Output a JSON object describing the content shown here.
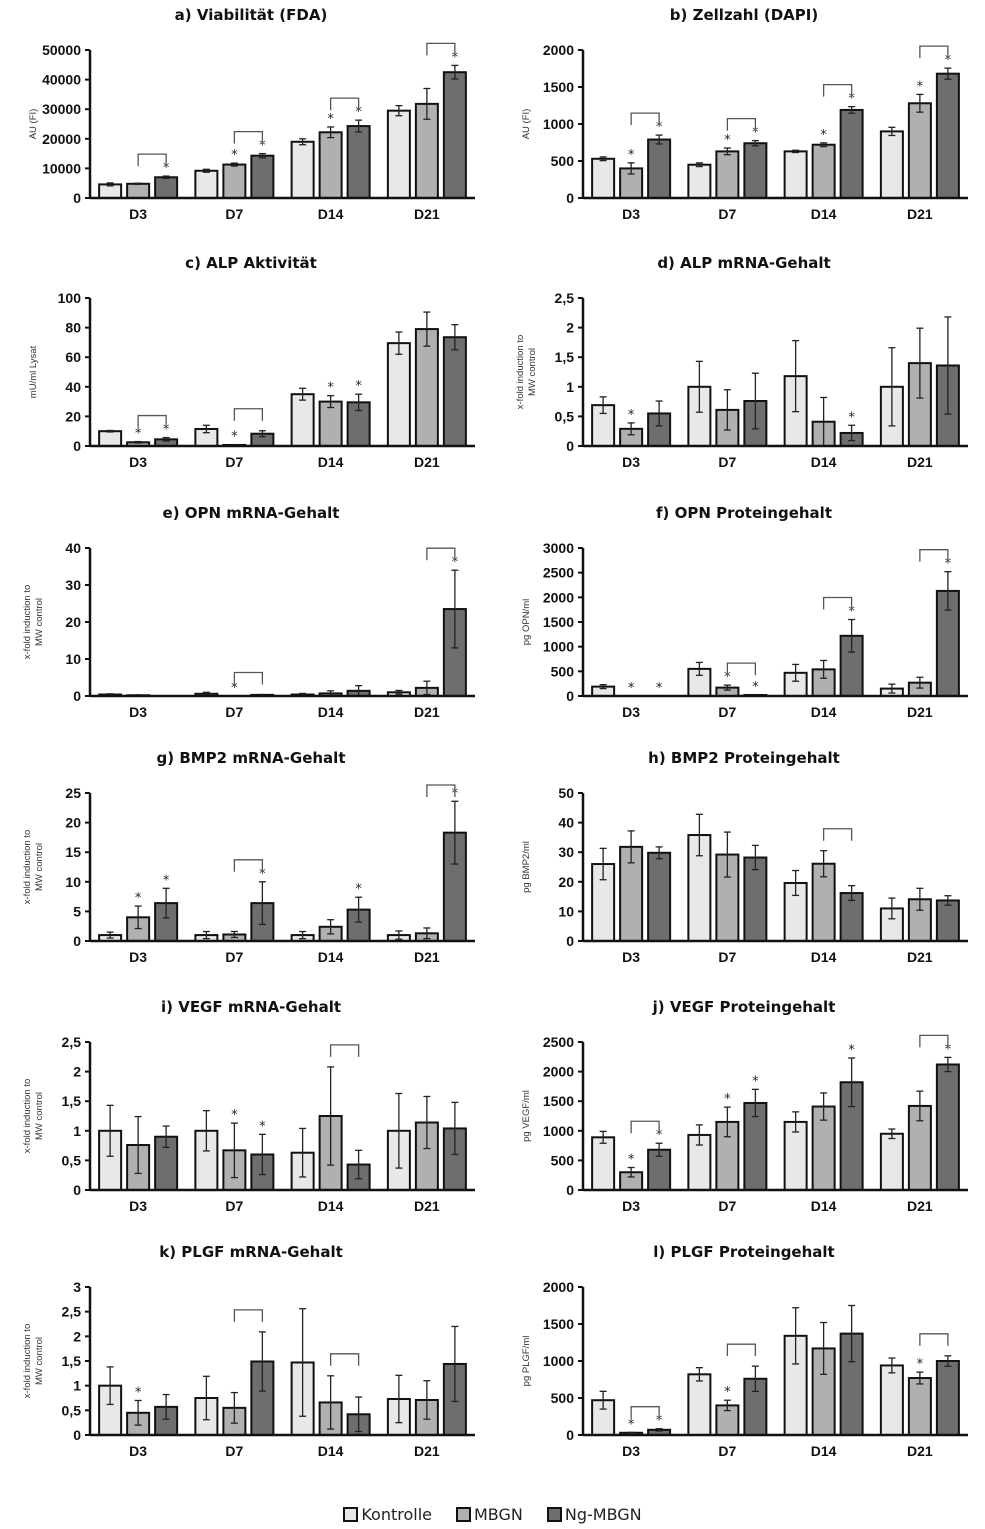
{
  "legend": [
    {
      "name": "Kontrolle",
      "color": "#e8e8e8"
    },
    {
      "name": "MBGN",
      "color": "#b0b0b0"
    },
    {
      "name": "Ng-MBGN",
      "color": "#6e6e6e"
    }
  ],
  "chart_data": [
    {
      "id": "a",
      "type": "bar",
      "title": "a) Viabilität (FDA)",
      "ylabel": "AU (FI)",
      "categories": [
        "D3",
        "D7",
        "D14",
        "D21"
      ],
      "ylim": [
        0,
        50000
      ],
      "yticks": [
        "0",
        "10000",
        "20000",
        "30000",
        "40000",
        "50000"
      ],
      "ytick_values": [
        0,
        10000,
        20000,
        30000,
        40000,
        50000
      ],
      "series": [
        {
          "name": "Kontrolle",
          "values": [
            4600,
            9200,
            19000,
            29500
          ],
          "errors": [
            500,
            500,
            1000,
            1700
          ]
        },
        {
          "name": "MBGN",
          "values": [
            4800,
            11300,
            22200,
            31800
          ],
          "errors": [
            200,
            500,
            1800,
            5200
          ]
        },
        {
          "name": "Ng-MBGN",
          "values": [
            7000,
            14300,
            24300,
            42500
          ],
          "errors": [
            400,
            700,
            2000,
            2300
          ]
        }
      ],
      "stars": [
        [
          0,
          2
        ],
        [
          1,
          1
        ],
        [
          1,
          2
        ],
        [
          2,
          1
        ],
        [
          2,
          2
        ],
        [
          3,
          2
        ]
      ],
      "brackets": [
        [
          0,
          1,
          2
        ],
        [
          1,
          1,
          2
        ],
        [
          2,
          1,
          2
        ],
        [
          3,
          1,
          2
        ]
      ]
    },
    {
      "id": "b",
      "type": "bar",
      "title": "b) Zellzahl (DAPI)",
      "ylabel": "AU (FI)",
      "categories": [
        "D3",
        "D7",
        "D14",
        "D21"
      ],
      "ylim": [
        0,
        2000
      ],
      "yticks": [
        "0",
        "500",
        "1000",
        "1500",
        "2000"
      ],
      "ytick_values": [
        0,
        500,
        1000,
        1500,
        2000
      ],
      "series": [
        {
          "name": "Kontrolle",
          "values": [
            530,
            450,
            630,
            900
          ],
          "errors": [
            25,
            25,
            15,
            55
          ]
        },
        {
          "name": "MBGN",
          "values": [
            400,
            630,
            720,
            1280
          ],
          "errors": [
            75,
            45,
            25,
            120
          ]
        },
        {
          "name": "Ng-MBGN",
          "values": [
            790,
            740,
            1190,
            1680
          ],
          "errors": [
            60,
            35,
            45,
            75
          ]
        }
      ],
      "stars": [
        [
          0,
          1
        ],
        [
          0,
          2
        ],
        [
          1,
          1
        ],
        [
          1,
          2
        ],
        [
          2,
          1
        ],
        [
          2,
          2
        ],
        [
          3,
          1
        ],
        [
          3,
          2
        ]
      ],
      "brackets": [
        [
          0,
          1,
          2
        ],
        [
          1,
          1,
          2
        ],
        [
          2,
          1,
          2
        ],
        [
          3,
          1,
          2
        ]
      ]
    },
    {
      "id": "c",
      "type": "bar",
      "title": "c) ALP Aktivität",
      "ylabel": "mU/ml Lysat",
      "categories": [
        "D3",
        "D7",
        "D14",
        "D21"
      ],
      "ylim": [
        0,
        100
      ],
      "yticks": [
        "0",
        "20",
        "40",
        "60",
        "80",
        "100"
      ],
      "ytick_values": [
        0,
        20,
        40,
        60,
        80,
        100
      ],
      "series": [
        {
          "name": "Kontrolle",
          "values": [
            10,
            11.5,
            35,
            69.5
          ],
          "errors": [
            0.5,
            2.5,
            4,
            7.5
          ]
        },
        {
          "name": "MBGN",
          "values": [
            2.5,
            0.7,
            30,
            79
          ],
          "errors": [
            0.5,
            0.2,
            4,
            11.5
          ]
        },
        {
          "name": "Ng-MBGN",
          "values": [
            4.5,
            8.3,
            29.5,
            73.5
          ],
          "errors": [
            1.2,
            2,
            5.5,
            8.5
          ]
        }
      ],
      "stars": [
        [
          0,
          1
        ],
        [
          0,
          2
        ],
        [
          1,
          1
        ],
        [
          2,
          1
        ],
        [
          2,
          2
        ]
      ],
      "brackets": [
        [
          0,
          1,
          2
        ],
        [
          1,
          1,
          2
        ]
      ]
    },
    {
      "id": "d",
      "type": "bar",
      "title": "d) ALP mRNA-Gehalt",
      "ylabel": "x-fold induction to MW control",
      "categories": [
        "D3",
        "D7",
        "D14",
        "D21"
      ],
      "ylim": [
        0,
        2.5
      ],
      "yticks": [
        "0",
        "0,5",
        "1",
        "1,5",
        "2",
        "2,5"
      ],
      "ytick_values": [
        0,
        0.5,
        1,
        1.5,
        2,
        2.5
      ],
      "series": [
        {
          "name": "Kontrolle",
          "values": [
            0.69,
            1.0,
            1.18,
            1.0
          ],
          "errors": [
            0.14,
            0.43,
            0.6,
            0.66
          ]
        },
        {
          "name": "MBGN",
          "values": [
            0.29,
            0.61,
            0.41,
            1.4
          ],
          "errors": [
            0.1,
            0.34,
            0.41,
            0.59
          ]
        },
        {
          "name": "Ng-MBGN",
          "values": [
            0.55,
            0.76,
            0.22,
            1.36
          ],
          "errors": [
            0.21,
            0.47,
            0.13,
            0.82
          ]
        }
      ],
      "stars": [
        [
          0,
          1
        ],
        [
          2,
          2
        ]
      ],
      "brackets": []
    },
    {
      "id": "e",
      "type": "bar",
      "title": "e) OPN mRNA-Gehalt",
      "ylabel": "x-fold induction to MW control",
      "categories": [
        "D3",
        "D7",
        "D14",
        "D21"
      ],
      "ylim": [
        0,
        40
      ],
      "yticks": [
        "0",
        "10",
        "20",
        "30",
        "40"
      ],
      "ytick_values": [
        0,
        10,
        20,
        30,
        40
      ],
      "series": [
        {
          "name": "Kontrolle",
          "values": [
            0.4,
            0.6,
            0.4,
            1.0
          ],
          "errors": [
            0.2,
            0.4,
            0.3,
            0.5
          ]
        },
        {
          "name": "MBGN",
          "values": [
            0.2,
            0.0,
            0.7,
            2.2
          ],
          "errors": [
            0.1,
            0.0,
            0.7,
            1.8
          ]
        },
        {
          "name": "Ng-MBGN",
          "values": [
            0.05,
            0.3,
            1.4,
            23.5
          ],
          "errors": [
            0.0,
            0.1,
            1.4,
            10.5
          ]
        }
      ],
      "stars": [
        [
          1,
          1
        ],
        [
          3,
          2
        ]
      ],
      "brackets": [
        [
          1,
          1,
          2
        ],
        [
          3,
          1,
          2
        ]
      ]
    },
    {
      "id": "f",
      "type": "bar",
      "title": "f) OPN Proteingehalt",
      "ylabel": "pg OPN/ml",
      "categories": [
        "D3",
        "D7",
        "D14",
        "D21"
      ],
      "ylim": [
        0,
        3000
      ],
      "yticks": [
        "0",
        "500",
        "1000",
        "1500",
        "2000",
        "2500",
        "3000"
      ],
      "ytick_values": [
        0,
        500,
        1000,
        1500,
        2000,
        2500,
        3000
      ],
      "series": [
        {
          "name": "Kontrolle",
          "values": [
            190,
            550,
            470,
            150
          ],
          "errors": [
            40,
            130,
            170,
            90
          ]
        },
        {
          "name": "MBGN",
          "values": [
            0,
            170,
            540,
            270
          ],
          "errors": [
            0,
            50,
            180,
            110
          ]
        },
        {
          "name": "Ng-MBGN",
          "values": [
            0,
            20,
            1220,
            2130
          ],
          "errors": [
            0,
            0,
            330,
            390
          ]
        }
      ],
      "stars": [
        [
          0,
          1
        ],
        [
          0,
          2
        ],
        [
          1,
          1
        ],
        [
          1,
          2
        ],
        [
          2,
          2
        ],
        [
          3,
          2
        ]
      ],
      "brackets": [
        [
          1,
          1,
          2
        ],
        [
          2,
          1,
          2
        ],
        [
          3,
          1,
          2
        ]
      ]
    },
    {
      "id": "g",
      "type": "bar",
      "title": "g) BMP2 mRNA-Gehalt",
      "ylabel": "x-fold induction to MW control",
      "categories": [
        "D3",
        "D7",
        "D14",
        "D21"
      ],
      "ylim": [
        0,
        25
      ],
      "yticks": [
        "0",
        "5",
        "10",
        "15",
        "20",
        "25"
      ],
      "ytick_values": [
        0,
        5,
        10,
        15,
        20,
        25
      ],
      "series": [
        {
          "name": "Kontrolle",
          "values": [
            1.0,
            1.0,
            1.0,
            1.0
          ],
          "errors": [
            0.5,
            0.6,
            0.6,
            0.7
          ]
        },
        {
          "name": "MBGN",
          "values": [
            4.0,
            1.1,
            2.4,
            1.3
          ],
          "errors": [
            1.9,
            0.5,
            1.2,
            0.9
          ]
        },
        {
          "name": "Ng-MBGN",
          "values": [
            6.4,
            6.4,
            5.3,
            18.3
          ],
          "errors": [
            2.5,
            3.6,
            2.1,
            5.3
          ]
        }
      ],
      "stars": [
        [
          0,
          1
        ],
        [
          0,
          2
        ],
        [
          1,
          2
        ],
        [
          2,
          2
        ],
        [
          3,
          2
        ]
      ],
      "brackets": [
        [
          1,
          1,
          2
        ],
        [
          3,
          1,
          2
        ]
      ]
    },
    {
      "id": "h",
      "type": "bar",
      "title": "h) BMP2 Proteingehalt",
      "ylabel": "pg BMP2/ml",
      "categories": [
        "D3",
        "D7",
        "D14",
        "D21"
      ],
      "ylim": [
        0,
        50
      ],
      "yticks": [
        "0",
        "10",
        "20",
        "30",
        "40",
        "50"
      ],
      "ytick_values": [
        0,
        10,
        20,
        30,
        40,
        50
      ],
      "series": [
        {
          "name": "Kontrolle",
          "values": [
            26,
            35.8,
            19.6,
            11
          ],
          "errors": [
            5.3,
            7,
            4.2,
            3.5
          ]
        },
        {
          "name": "MBGN",
          "values": [
            31.8,
            29.2,
            26.1,
            14.1
          ],
          "errors": [
            5.4,
            7.6,
            4.4,
            3.7
          ]
        },
        {
          "name": "Ng-MBGN",
          "values": [
            29.8,
            28.2,
            16.2,
            13.7
          ],
          "errors": [
            2,
            4.1,
            2.5,
            1.6
          ]
        }
      ],
      "stars": [],
      "brackets": [
        [
          2,
          1,
          2
        ]
      ]
    },
    {
      "id": "i",
      "type": "bar",
      "title": "i) VEGF mRNA-Gehalt",
      "ylabel": "x-fold induction to MW control",
      "categories": [
        "D3",
        "D7",
        "D14",
        "D21"
      ],
      "ylim": [
        0,
        2.5
      ],
      "yticks": [
        "0",
        "0,5",
        "1",
        "1,5",
        "2",
        "2,5"
      ],
      "ytick_values": [
        0,
        0.5,
        1,
        1.5,
        2,
        2.5
      ],
      "series": [
        {
          "name": "Kontrolle",
          "values": [
            1.0,
            1.0,
            0.63,
            1.0
          ],
          "errors": [
            0.43,
            0.34,
            0.41,
            0.63
          ]
        },
        {
          "name": "MBGN",
          "values": [
            0.76,
            0.67,
            1.25,
            1.14
          ],
          "errors": [
            0.48,
            0.46,
            0.83,
            0.44
          ]
        },
        {
          "name": "Ng-MBGN",
          "values": [
            0.9,
            0.6,
            0.43,
            1.04
          ],
          "errors": [
            0.18,
            0.34,
            0.24,
            0.44
          ]
        }
      ],
      "stars": [
        [
          1,
          1
        ],
        [
          1,
          2
        ]
      ],
      "brackets": [
        [
          2,
          1,
          2
        ]
      ]
    },
    {
      "id": "j",
      "type": "bar",
      "title": "j) VEGF Proteingehalt",
      "ylabel": "pg VEGF/ml",
      "categories": [
        "D3",
        "D7",
        "D14",
        "D21"
      ],
      "ylim": [
        0,
        2500
      ],
      "yticks": [
        "0",
        "500",
        "1000",
        "1500",
        "2000",
        "2500"
      ],
      "ytick_values": [
        0,
        500,
        1000,
        1500,
        2000,
        2500
      ],
      "series": [
        {
          "name": "Kontrolle",
          "values": [
            890,
            930,
            1150,
            950
          ],
          "errors": [
            100,
            170,
            170,
            80
          ]
        },
        {
          "name": "MBGN",
          "values": [
            300,
            1150,
            1410,
            1420
          ],
          "errors": [
            80,
            250,
            230,
            250
          ]
        },
        {
          "name": "Ng-MBGN",
          "values": [
            680,
            1470,
            1820,
            2120
          ],
          "errors": [
            110,
            230,
            410,
            120
          ]
        }
      ],
      "stars": [
        [
          0,
          1
        ],
        [
          0,
          2
        ],
        [
          1,
          1
        ],
        [
          1,
          2
        ],
        [
          2,
          2
        ],
        [
          3,
          2
        ]
      ],
      "brackets": [
        [
          0,
          1,
          2
        ],
        [
          3,
          1,
          2
        ]
      ]
    },
    {
      "id": "k",
      "type": "bar",
      "title": "k) PLGF mRNA-Gehalt",
      "ylabel": "x-fold induction to MW control",
      "categories": [
        "D3",
        "D7",
        "D14",
        "D21"
      ],
      "ylim": [
        0,
        3
      ],
      "yticks": [
        "0",
        "0,5",
        "1",
        "1,5",
        "2",
        "2,5",
        "3"
      ],
      "ytick_values": [
        0,
        0.5,
        1,
        1.5,
        2,
        2.5,
        3
      ],
      "series": [
        {
          "name": "Kontrolle",
          "values": [
            1.0,
            0.75,
            1.47,
            0.73
          ],
          "errors": [
            0.38,
            0.44,
            1.09,
            0.48
          ]
        },
        {
          "name": "MBGN",
          "values": [
            0.45,
            0.55,
            0.66,
            0.71
          ],
          "errors": [
            0.25,
            0.31,
            0.54,
            0.39
          ]
        },
        {
          "name": "Ng-MBGN",
          "values": [
            0.57,
            1.49,
            0.42,
            1.44
          ],
          "errors": [
            0.25,
            0.6,
            0.35,
            0.76
          ]
        }
      ],
      "stars": [
        [
          0,
          1
        ]
      ],
      "brackets": [
        [
          1,
          1,
          2
        ],
        [
          2,
          1,
          2
        ]
      ]
    },
    {
      "id": "l",
      "type": "bar",
      "title": "l) PLGF Proteingehalt",
      "ylabel": "pg PLGF/ml",
      "categories": [
        "D3",
        "D7",
        "D14",
        "D21"
      ],
      "ylim": [
        0,
        2000
      ],
      "yticks": [
        "0",
        "500",
        "1000",
        "1500",
        "2000"
      ],
      "ytick_values": [
        0,
        500,
        1000,
        1500,
        2000
      ],
      "series": [
        {
          "name": "Kontrolle",
          "values": [
            470,
            820,
            1340,
            940
          ],
          "errors": [
            120,
            90,
            380,
            100
          ]
        },
        {
          "name": "MBGN",
          "values": [
            30,
            400,
            1170,
            770
          ],
          "errors": [
            5,
            70,
            350,
            80
          ]
        },
        {
          "name": "Ng-MBGN",
          "values": [
            70,
            760,
            1370,
            1000
          ],
          "errors": [
            15,
            170,
            380,
            70
          ]
        }
      ],
      "stars": [
        [
          0,
          1
        ],
        [
          0,
          2
        ],
        [
          1,
          1
        ],
        [
          3,
          1
        ]
      ],
      "brackets": [
        [
          0,
          1,
          2
        ],
        [
          1,
          1,
          2
        ],
        [
          3,
          1,
          2
        ]
      ]
    }
  ]
}
